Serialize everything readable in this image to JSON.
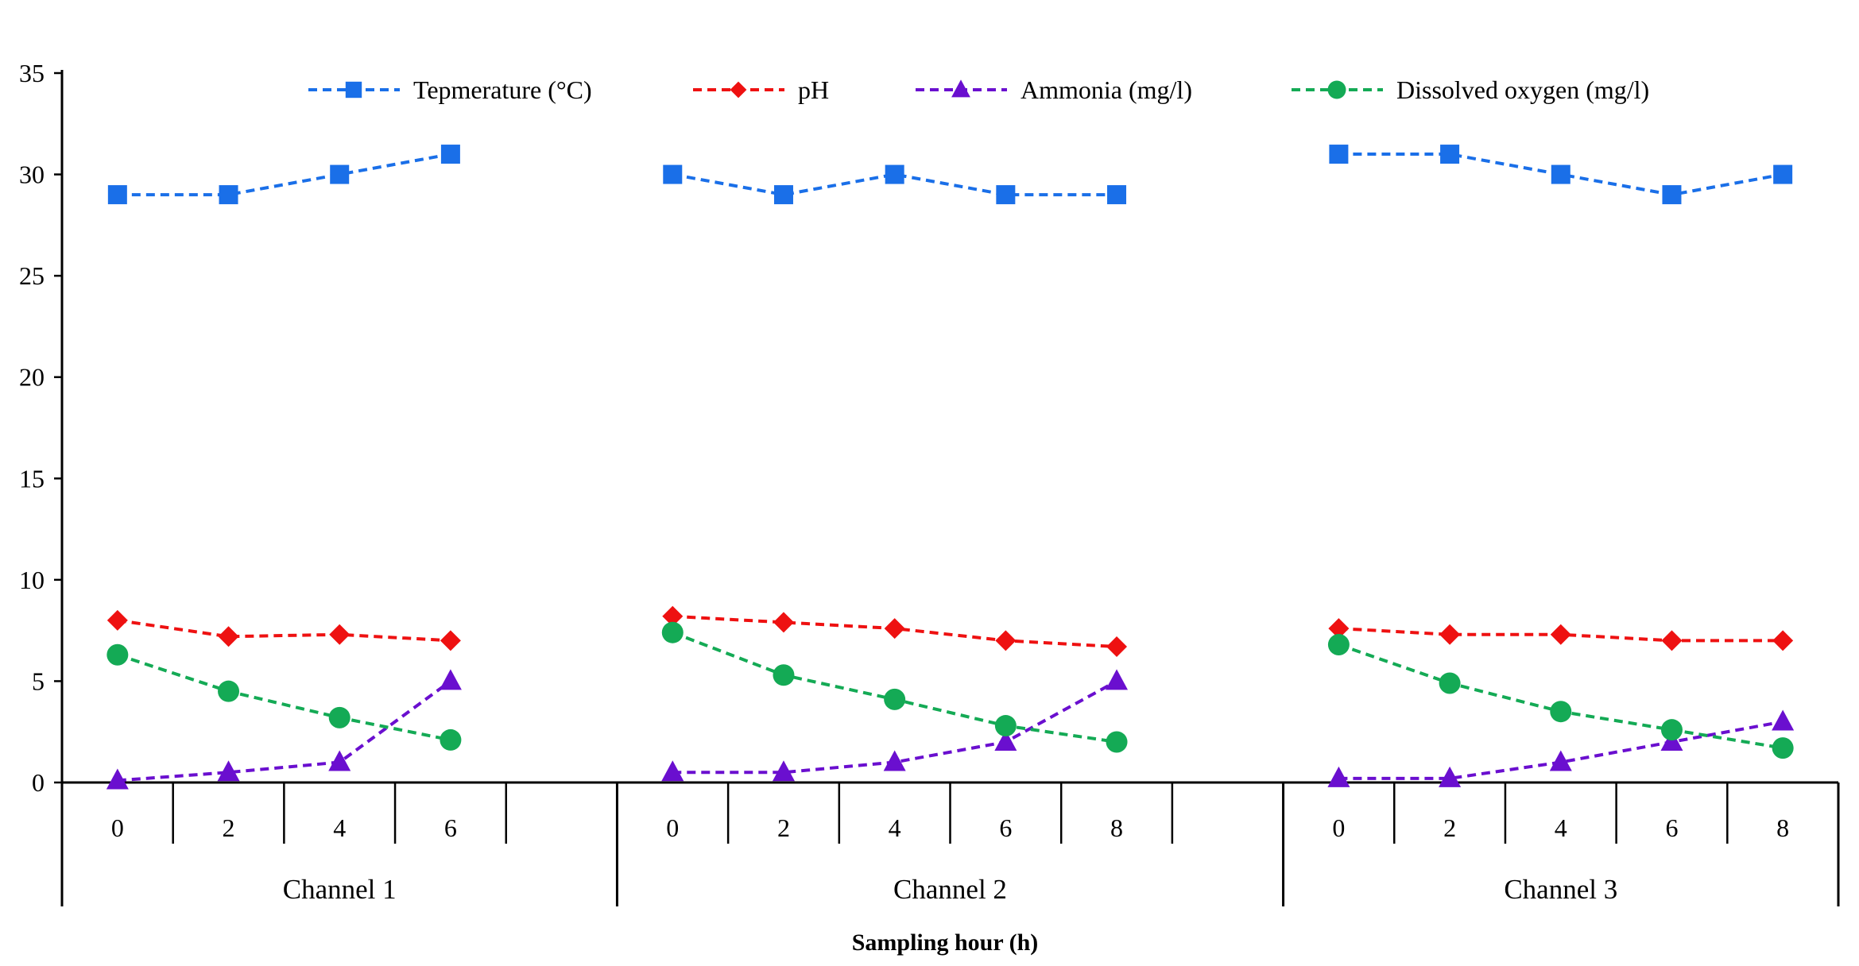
{
  "chart_data": {
    "type": "line",
    "title": "",
    "xlabel": "Sampling hour (h)",
    "ylabel": "",
    "ylim": [
      0,
      35
    ],
    "yticks": [
      0,
      5,
      10,
      15,
      20,
      25,
      30,
      35
    ],
    "grid": false,
    "legend_position": "top",
    "groups": [
      {
        "name": "Channel 1",
        "hours": [
          "0",
          "2",
          "4",
          "6"
        ],
        "slots": 5
      },
      {
        "name": "Channel 2",
        "hours": [
          "0",
          "2",
          "4",
          "6",
          "8"
        ],
        "slots": 6
      },
      {
        "name": "Channel 3",
        "hours": [
          "0",
          "2",
          "4",
          "6",
          "8"
        ],
        "slots": 5
      }
    ],
    "series": [
      {
        "name": "Tepmerature (°C)",
        "color": "#1a6fe8",
        "marker": "square",
        "values": [
          [
            29,
            29,
            30,
            31
          ],
          [
            30,
            29,
            30,
            29,
            29
          ],
          [
            31,
            31,
            30,
            29,
            30
          ]
        ]
      },
      {
        "name": "pH",
        "color": "#ee1111",
        "marker": "diamond",
        "values": [
          [
            8.0,
            7.2,
            7.3,
            7.0
          ],
          [
            8.2,
            7.9,
            7.6,
            7.0,
            6.7
          ],
          [
            7.6,
            7.3,
            7.3,
            7.0,
            7.0
          ]
        ]
      },
      {
        "name": "Ammonia (mg/l)",
        "color": "#6a0fcf",
        "marker": "triangle",
        "values": [
          [
            0.1,
            0.5,
            1.0,
            5.0
          ],
          [
            0.5,
            0.5,
            1.0,
            2.0,
            5.0
          ],
          [
            0.2,
            0.2,
            1.0,
            2.0,
            3.0
          ]
        ]
      },
      {
        "name": "Dissolved oxygen (mg/l)",
        "color": "#14aa55",
        "marker": "circle",
        "values": [
          [
            6.3,
            4.5,
            3.2,
            2.1
          ],
          [
            7.4,
            5.3,
            4.1,
            2.8,
            2.0
          ],
          [
            6.8,
            4.9,
            3.5,
            2.6,
            1.7
          ]
        ]
      }
    ]
  }
}
